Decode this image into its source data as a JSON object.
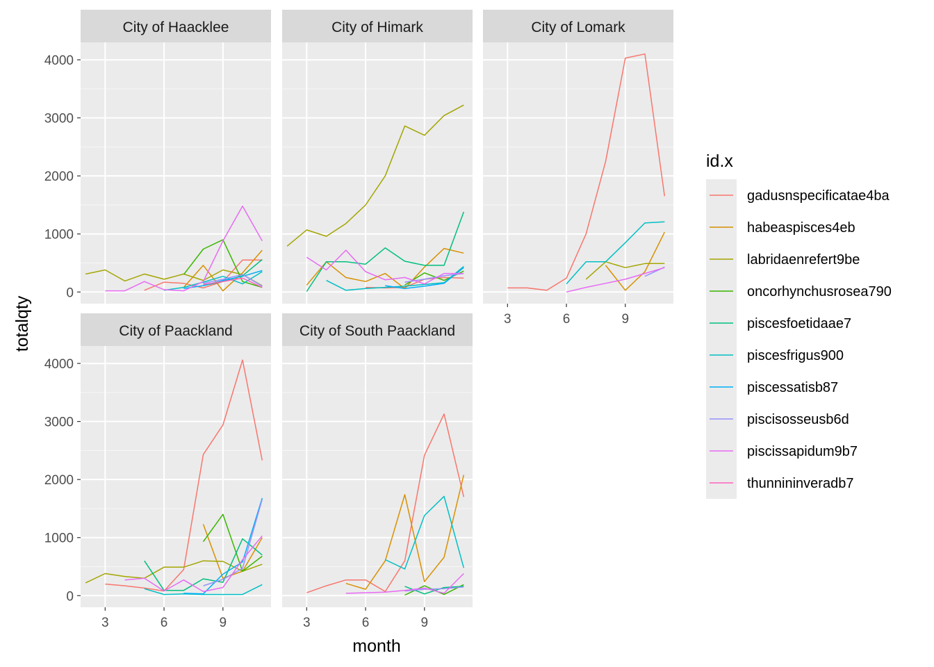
{
  "chart_data": {
    "type": "line",
    "facet_by": "city",
    "xlabel": "month",
    "ylabel": "totalqty",
    "x_ticks": [
      3,
      6,
      9
    ],
    "y_ticks": [
      0,
      1000,
      2000,
      3000,
      4000
    ],
    "xlim": [
      1.75,
      11.45
    ],
    "ylim": [
      -200,
      4300
    ],
    "legend": {
      "title": "id.x",
      "position": "right"
    },
    "grid": true,
    "series_colors": {
      "gadusnspecificatae4ba": "#F8766D",
      "habeaspisces4eb": "#D89000",
      "labridaenrefert9be": "#A3A500",
      "oncorhynchusrosea790": "#39B600",
      "piscesfoetidaae7": "#00BF7D",
      "piscesfrigus900": "#00BFC4",
      "piscessatisb87": "#00B0F6",
      "piscisosseusb6d": "#9590FF",
      "piscissapidum9b7": "#E76BF3",
      "thunnininveradb7": "#FF62BC"
    },
    "panels": [
      {
        "title": "City of Haacklee",
        "series": [
          {
            "name": "gadusnspecificatae4ba",
            "x": [
              5,
              6,
              7,
              8,
              9,
              10,
              11
            ],
            "y": [
              30,
              170,
              150,
              70,
              180,
              550,
              550
            ]
          },
          {
            "name": "habeaspisces4eb",
            "x": [
              7,
              8,
              9,
              10,
              11
            ],
            "y": [
              80,
              460,
              20,
              330,
              720
            ]
          },
          {
            "name": "labridaenrefert9be",
            "x": [
              2,
              3,
              4,
              5,
              6,
              7,
              8,
              9,
              10,
              11
            ],
            "y": [
              310,
              380,
              190,
              310,
              220,
              310,
              200,
              380,
              300,
              110
            ]
          },
          {
            "name": "oncorhynchusrosea790",
            "x": [
              7,
              8,
              9,
              10,
              11
            ],
            "y": [
              300,
              740,
              900,
              180,
              80
            ]
          },
          {
            "name": "piscesfoetidaae7",
            "x": [
              8,
              9,
              10,
              11
            ],
            "y": [
              110,
              180,
              280,
              560
            ]
          },
          {
            "name": "piscesfrigus900",
            "x": [
              6,
              7,
              8,
              9,
              10,
              11
            ],
            "y": [
              30,
              80,
              170,
              270,
              140,
              350
            ]
          },
          {
            "name": "piscessatisb87",
            "x": [
              7,
              8,
              9,
              10,
              11
            ],
            "y": [
              60,
              110,
              200,
              270,
              370
            ]
          },
          {
            "name": "piscisosseusb6d",
            "x": [
              8,
              9,
              10,
              11
            ],
            "y": [
              150,
              220,
              300,
              100
            ]
          },
          {
            "name": "piscissapidum9b7",
            "x": [
              3,
              4,
              5,
              6,
              7,
              8,
              9,
              10,
              11
            ],
            "y": [
              20,
              20,
              180,
              40,
              20,
              180,
              880,
              1480,
              880
            ]
          },
          {
            "name": "thunnininveradb7",
            "x": [
              8,
              9,
              10,
              11
            ],
            "y": [
              130,
              180,
              240,
              80
            ]
          }
        ]
      },
      {
        "title": "City of Himark",
        "series": [
          {
            "name": "gadusnspecificatae4ba",
            "x": [
              6,
              7,
              8,
              9,
              10,
              11
            ],
            "y": [
              80,
              70,
              80,
              220,
              250,
              240
            ]
          },
          {
            "name": "habeaspisces4eb",
            "x": [
              3,
              4,
              5,
              6,
              7,
              8,
              9,
              10,
              11
            ],
            "y": [
              120,
              520,
              250,
              180,
              320,
              60,
              430,
              750,
              670
            ]
          },
          {
            "name": "labridaenrefert9be",
            "x": [
              2,
              3,
              4,
              5,
              6,
              7,
              8,
              9,
              10,
              11
            ],
            "y": [
              790,
              1070,
              960,
              1180,
              1500,
              2000,
              2860,
              2700,
              3040,
              3220
            ]
          },
          {
            "name": "oncorhynchusrosea790",
            "x": [
              8,
              9,
              10,
              11
            ],
            "y": [
              120,
              330,
              200,
              360
            ]
          },
          {
            "name": "piscesfoetidaae7",
            "x": [
              3,
              4,
              5,
              6,
              7,
              8,
              9,
              10,
              11
            ],
            "y": [
              10,
              520,
              520,
              480,
              760,
              530,
              460,
              460,
              1380
            ]
          },
          {
            "name": "piscesfrigus900",
            "x": [
              4,
              5,
              6,
              7,
              8,
              9,
              10,
              11
            ],
            "y": [
              200,
              30,
              60,
              80,
              100,
              130,
              160,
              440
            ]
          },
          {
            "name": "piscessatisb87",
            "x": [
              7,
              8,
              9,
              10,
              11
            ],
            "y": [
              110,
              60,
              100,
              150,
              420
            ]
          },
          {
            "name": "piscisosseusb6d",
            "x": [
              8,
              9,
              10,
              11
            ],
            "y": [
              170,
              220,
              280,
              320
            ]
          },
          {
            "name": "piscissapidum9b7",
            "x": [
              3,
              4,
              5,
              6,
              7,
              8,
              9,
              10,
              11
            ],
            "y": [
              600,
              380,
              720,
              350,
              210,
              250,
              140,
              320,
              320
            ]
          }
        ]
      },
      {
        "title": "City of Lomark",
        "series": [
          {
            "name": "gadusnspecificatae4ba",
            "x": [
              3,
              4,
              5,
              6,
              7,
              8,
              9,
              10,
              11
            ],
            "y": [
              70,
              70,
              30,
              240,
              1000,
              2250,
              4030,
              4100,
              1650
            ]
          },
          {
            "name": "habeaspisces4eb",
            "x": [
              8,
              9,
              10,
              11
            ],
            "y": [
              460,
              30,
              350,
              1030
            ]
          },
          {
            "name": "labridaenrefert9be",
            "x": [
              7,
              8,
              9,
              10,
              11
            ],
            "y": [
              220,
              520,
              420,
              490,
              490
            ]
          },
          {
            "name": "piscesfrigus900",
            "x": [
              6,
              7,
              8,
              9,
              10,
              11
            ],
            "y": [
              140,
              520,
              520,
              850,
              1190,
              1210
            ]
          },
          {
            "name": "piscisosseusb6d",
            "x": [
              10,
              11
            ],
            "y": [
              270,
              430
            ]
          },
          {
            "name": "piscissapidum9b7",
            "x": [
              6,
              7,
              8,
              9,
              10,
              11
            ],
            "y": [
              0,
              80,
              150,
              220,
              320,
              420
            ]
          }
        ]
      },
      {
        "title": "City of Paackland",
        "series": [
          {
            "name": "gadusnspecificatae4ba",
            "x": [
              3,
              4,
              5,
              6,
              7,
              8,
              9,
              10,
              11
            ],
            "y": [
              200,
              170,
              130,
              80,
              450,
              2430,
              2940,
              4060,
              2330
            ]
          },
          {
            "name": "habeaspisces4eb",
            "x": [
              8,
              9,
              10,
              11
            ],
            "y": [
              1230,
              300,
              420,
              1000
            ]
          },
          {
            "name": "labridaenrefert9be",
            "x": [
              2,
              3,
              4,
              5,
              6,
              7,
              8,
              9,
              10,
              11
            ],
            "y": [
              220,
              380,
              330,
              300,
              490,
              490,
              600,
              590,
              420,
              540
            ]
          },
          {
            "name": "oncorhynchusrosea790",
            "x": [
              8,
              9,
              10,
              11
            ],
            "y": [
              930,
              1400,
              420,
              680
            ]
          },
          {
            "name": "piscesfoetidaae7",
            "x": [
              5,
              6,
              7,
              8,
              9,
              10,
              11
            ],
            "y": [
              600,
              90,
              90,
              290,
              230,
              980,
              700
            ]
          },
          {
            "name": "piscesfrigus900",
            "x": [
              5,
              6,
              7,
              8,
              9,
              10,
              11
            ],
            "y": [
              120,
              20,
              30,
              20,
              20,
              20,
              190
            ]
          },
          {
            "name": "piscessatisb87",
            "x": [
              7,
              8,
              9,
              10,
              11
            ],
            "y": [
              40,
              30,
              370,
              580,
              1680
            ]
          },
          {
            "name": "piscisosseusb6d",
            "x": [
              8,
              9,
              10,
              11
            ],
            "y": [
              170,
              280,
              470,
              1660
            ]
          },
          {
            "name": "piscissapidum9b7",
            "x": [
              4,
              5,
              6,
              7,
              8,
              9,
              10,
              11
            ],
            "y": [
              270,
              300,
              80,
              270,
              70,
              140,
              620,
              1030
            ]
          }
        ]
      },
      {
        "title": "City of South Paackland",
        "series": [
          {
            "name": "gadusnspecificatae4ba",
            "x": [
              3,
              4,
              5,
              6,
              7,
              8,
              9,
              10,
              11
            ],
            "y": [
              50,
              170,
              270,
              270,
              70,
              600,
              2420,
              3130,
              1700
            ]
          },
          {
            "name": "habeaspisces4eb",
            "x": [
              5,
              6,
              7,
              8,
              9,
              10,
              11
            ],
            "y": [
              210,
              110,
              600,
              1740,
              240,
              660,
              2080
            ]
          },
          {
            "name": "oncorhynchusrosea790",
            "x": [
              8,
              9,
              10,
              11
            ],
            "y": [
              10,
              170,
              20,
              190
            ]
          },
          {
            "name": "piscesfoetidaae7",
            "x": [
              8,
              9,
              10,
              11
            ],
            "y": [
              160,
              30,
              140,
              160
            ]
          },
          {
            "name": "piscesfrigus900",
            "x": [
              7,
              8,
              9,
              10,
              11
            ],
            "y": [
              620,
              460,
              1380,
              1710,
              480
            ]
          },
          {
            "name": "piscisosseusb6d",
            "x": [
              8,
              9,
              10,
              11
            ],
            "y": [
              80,
              110,
              120,
              150
            ]
          },
          {
            "name": "piscissapidum9b7",
            "x": [
              5,
              6,
              7,
              8,
              9,
              10,
              11
            ],
            "y": [
              40,
              50,
              60,
              90,
              130,
              40,
              380
            ]
          }
        ]
      }
    ]
  }
}
